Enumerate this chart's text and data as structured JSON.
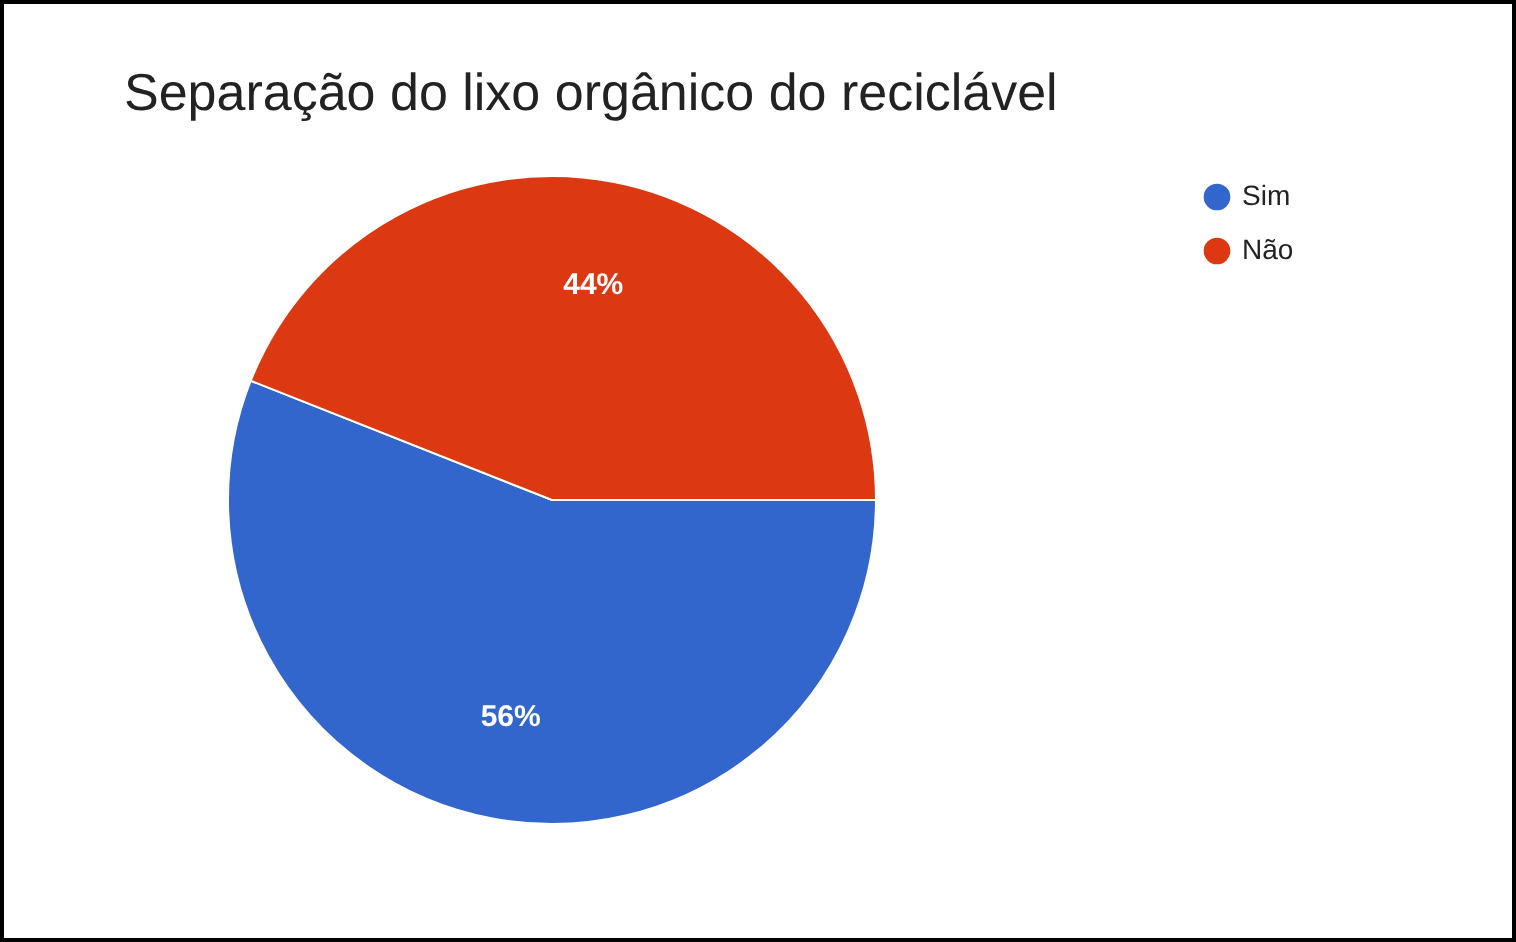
{
  "chart_data": {
    "type": "pie",
    "title": "Separação do lixo orgânico do reciclável",
    "categories": [
      "Sim",
      "Não"
    ],
    "values": [
      56,
      44
    ],
    "colors": [
      "#3366cc",
      "#dc3912"
    ],
    "value_labels": [
      "56%",
      "44%"
    ],
    "legend": "top right"
  }
}
